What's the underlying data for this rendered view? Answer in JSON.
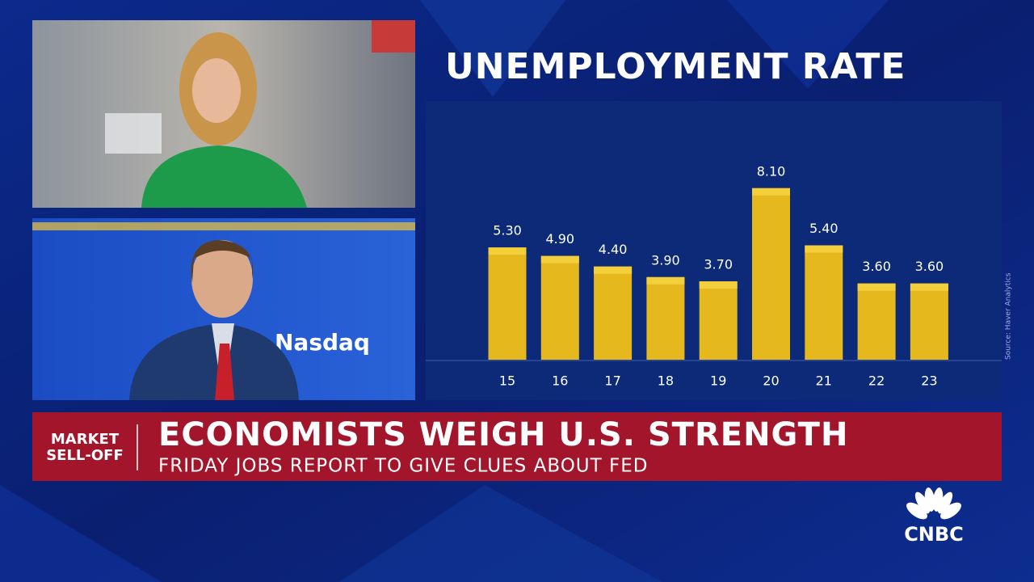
{
  "chart_data": {
    "type": "bar",
    "title": "UNEMPLOYMENT RATE",
    "categories": [
      "15",
      "16",
      "17",
      "18",
      "19",
      "20",
      "21",
      "22",
      "23"
    ],
    "values": [
      5.3,
      4.9,
      4.4,
      3.9,
      3.7,
      8.1,
      5.4,
      3.6,
      3.6
    ],
    "value_labels": [
      "5.30",
      "4.90",
      "4.40",
      "3.90",
      "3.70",
      "8.10",
      "5.40",
      "3.60",
      "3.60"
    ],
    "color": "#e5b81e",
    "source": "Source: Haver Analytics"
  },
  "banner": {
    "tag": [
      "MARKET",
      "SELL-OFF"
    ],
    "headline": "ECONOMISTS WEIGH U.S. STRENGTH",
    "subheadline": "FRIDAY JOBS REPORT TO GIVE CLUES ABOUT FED"
  },
  "video": {
    "sign": "Nasdaq"
  },
  "logo": "CNBC"
}
